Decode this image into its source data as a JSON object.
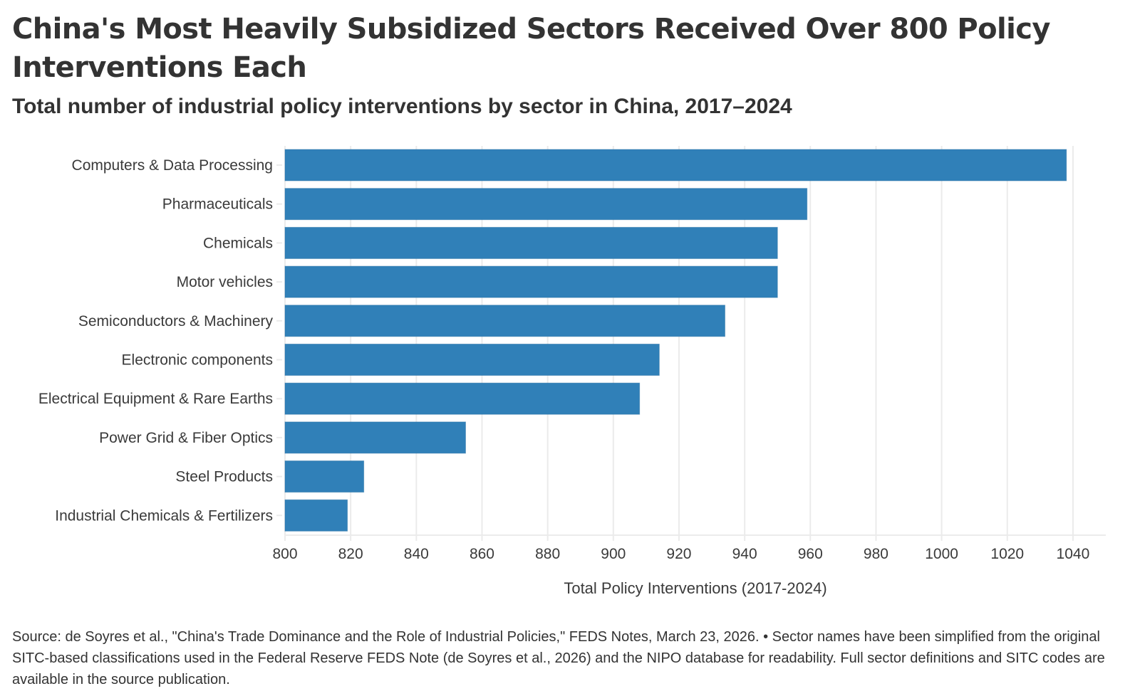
{
  "header": {
    "title": "China's Most Heavily Subsidized Sectors Received Over 800 Policy Interventions Each",
    "subtitle": "Total number of industrial policy interventions by sector in China, 2017–2024"
  },
  "footer": {
    "note": "Source: de Soyres et al., \"China's Trade Dominance and the Role of Industrial Policies,\" FEDS Notes, March 23, 2026. • Sector names have been simplified from the original SITC-based classifications used in the Federal Reserve FEDS Note (de Soyres et al., 2026) and the NIPO database for readability. Full sector definitions and SITC codes are available in the source publication."
  },
  "colors": {
    "bar": "#3080b8",
    "bar_edge": "#2a72a6",
    "grid": "#ebebeb",
    "text": "#333333"
  },
  "chart_data": {
    "type": "bar",
    "orientation": "horizontal",
    "title": "China's Most Heavily Subsidized Sectors Received Over 800 Policy Interventions Each",
    "subtitle": "Total number of industrial policy interventions by sector in China, 2017–2024",
    "xlabel": "Total Policy Interventions (2017-2024)",
    "ylabel": "",
    "categories": [
      "Computers & Data Processing",
      "Pharmaceuticals",
      "Chemicals",
      "Motor vehicles",
      "Semiconductors & Machinery",
      "Electronic components",
      "Electrical Equipment & Rare Earths",
      "Power Grid & Fiber Optics",
      "Steel Products",
      "Industrial Chemicals & Fertilizers"
    ],
    "values": [
      1038,
      959,
      950,
      950,
      934,
      914,
      908,
      855,
      824,
      819
    ],
    "xlim": [
      800,
      1050
    ],
    "xticks": [
      800,
      820,
      840,
      860,
      880,
      900,
      920,
      940,
      960,
      980,
      1000,
      1020,
      1040
    ],
    "grid": "vertical",
    "legend": "none"
  }
}
